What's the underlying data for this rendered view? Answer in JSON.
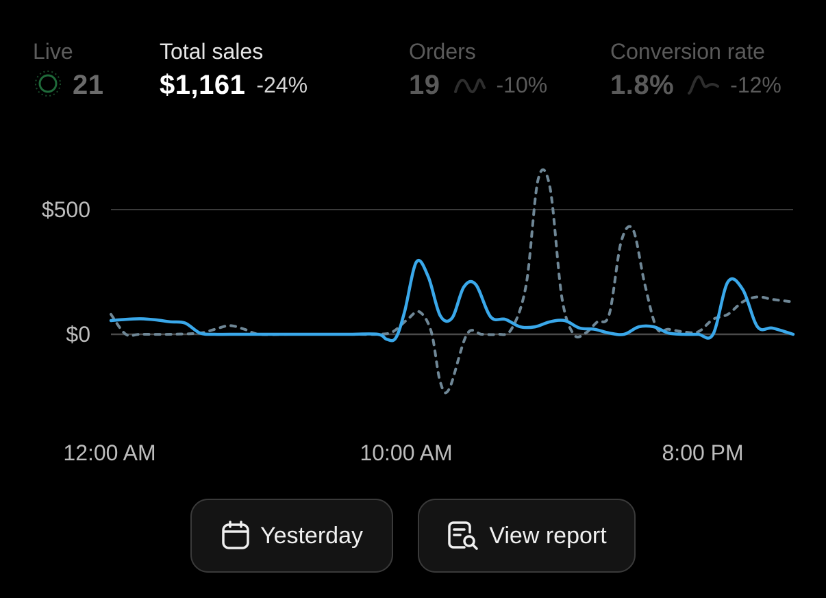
{
  "metrics": {
    "live": {
      "label": "Live",
      "value": "21"
    },
    "total_sales": {
      "label": "Total sales",
      "value": "$1,161",
      "change": "-24%"
    },
    "orders": {
      "label": "Orders",
      "value": "19",
      "change": "-10%"
    },
    "conversion": {
      "label": "Conversion rate",
      "value": "1.8%",
      "change": "-12%"
    }
  },
  "buttons": {
    "yesterday": {
      "label": "Yesterday",
      "icon": "calendar-icon"
    },
    "view_report": {
      "label": "View report",
      "icon": "report-search-icon"
    }
  },
  "colors": {
    "current_series": "#3aa8ea",
    "comparison_series": "#6f8796",
    "live_indicator": "#1f6b3a",
    "gridline": "#3a3a3a"
  },
  "chart_data": {
    "type": "line",
    "x_ticks": [
      "12:00 AM",
      "10:00 AM",
      "8:00 PM"
    ],
    "y_ticks": [
      "$0",
      "$500"
    ],
    "ylim": [
      -260,
      700
    ],
    "grid": true,
    "series": [
      {
        "style": "solid",
        "x": [
          0,
          0.5,
          1,
          1.5,
          2,
          2.5,
          3,
          3.5,
          4,
          5,
          6,
          7,
          8,
          9,
          9.3,
          9.6,
          9.9,
          10.3,
          10.7,
          11.1,
          11.5,
          11.9,
          12.3,
          12.8,
          13.3,
          13.8,
          14.3,
          14.8,
          15.3,
          15.8,
          16.3,
          16.8,
          17.3,
          17.8,
          18.3,
          18.8,
          19.3,
          19.8,
          20.3,
          20.8,
          21.3,
          21.8,
          22.3,
          23
        ],
        "y": [
          55,
          60,
          62,
          58,
          50,
          45,
          5,
          0,
          0,
          0,
          0,
          0,
          0,
          0,
          -20,
          -15,
          90,
          290,
          230,
          75,
          65,
          190,
          200,
          70,
          60,
          30,
          30,
          50,
          55,
          25,
          20,
          5,
          0,
          30,
          30,
          5,
          0,
          0,
          0,
          210,
          180,
          30,
          25,
          0
        ]
      },
      {
        "style": "dashed",
        "x": [
          0,
          0.5,
          1,
          2,
          3,
          3.5,
          4,
          4.5,
          5,
          6,
          7,
          8,
          9,
          9.5,
          10,
          10.4,
          10.8,
          11.1,
          11.4,
          12,
          12.5,
          13,
          13.5,
          14,
          14.4,
          14.8,
          15.2,
          15.6,
          16,
          16.4,
          16.8,
          17.2,
          17.6,
          18,
          18.4,
          18.8,
          19.3,
          19.8,
          20.3,
          20.8,
          21.3,
          21.8,
          22.3,
          23
        ],
        "y": [
          80,
          0,
          0,
          0,
          5,
          20,
          35,
          20,
          0,
          0,
          0,
          0,
          0,
          10,
          60,
          90,
          10,
          -190,
          -220,
          0,
          0,
          0,
          20,
          200,
          620,
          590,
          150,
          0,
          5,
          50,
          80,
          370,
          420,
          200,
          25,
          20,
          10,
          10,
          60,
          80,
          130,
          150,
          140,
          130
        ]
      }
    ]
  }
}
